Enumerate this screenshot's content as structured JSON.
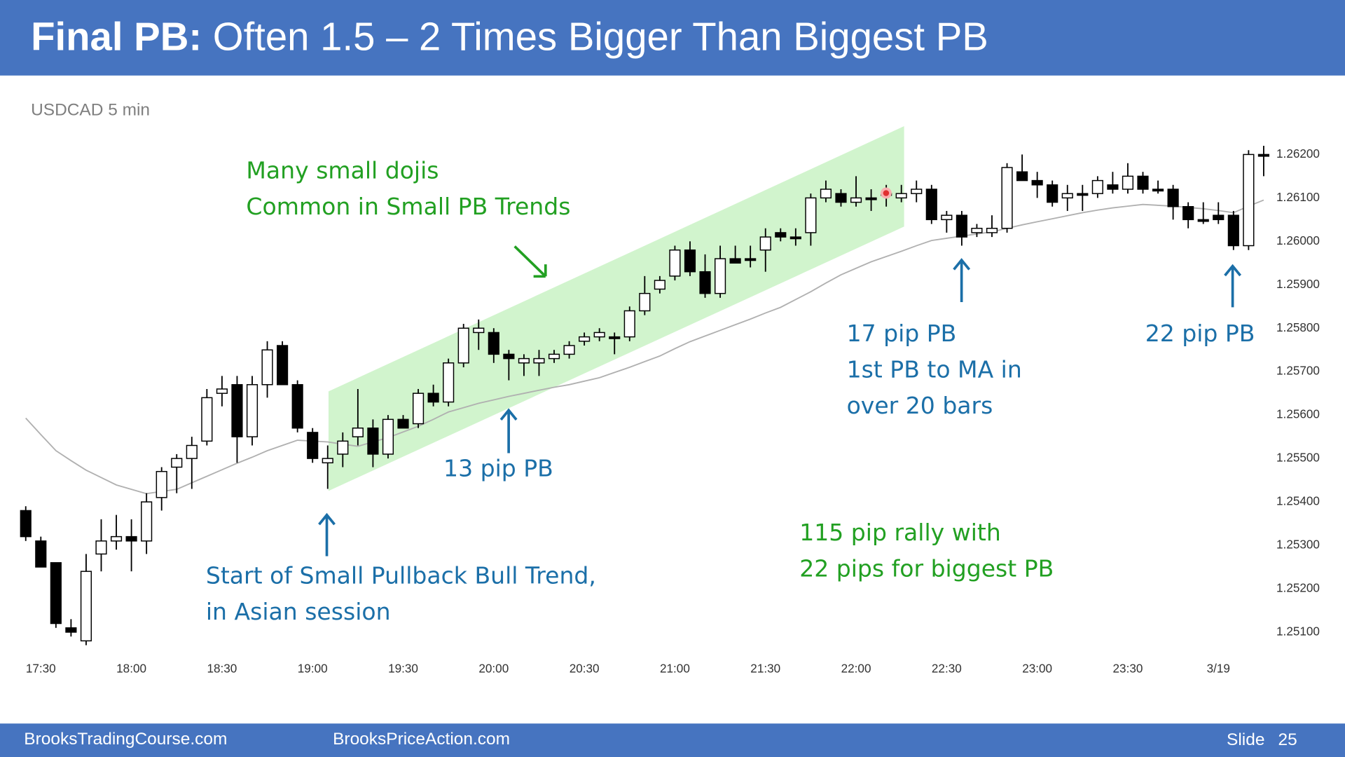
{
  "header": {
    "title_bold": "Final PB:",
    "title_rest": "Often 1.5 – 2 Times Bigger Than Biggest PB"
  },
  "chart_data": {
    "type": "candlestick",
    "title": "USDCAD 5 min",
    "open": [
      1.2538,
      1.2531,
      1.2526,
      1.2511,
      1.2508,
      1.2528,
      1.2531,
      1.2532,
      1.2531,
      1.2541,
      1.2548,
      1.255,
      1.2554,
      1.2565,
      1.2567,
      1.2555,
      1.2567,
      1.2576,
      1.2567,
      1.2556,
      1.2549,
      1.2551,
      1.2555,
      1.2557,
      1.2551,
      1.2559,
      1.2558,
      1.2565,
      1.2563,
      1.2572,
      1.2579,
      1.2579,
      1.2574,
      1.2572,
      1.2572,
      1.2573,
      1.2574,
      1.2577,
      1.2578,
      1.2578,
      1.2578,
      1.2584,
      1.2589,
      1.2592,
      1.2598,
      1.2593,
      1.2588,
      1.2596,
      1.2596,
      1.2598,
      1.2602,
      1.2601,
      1.2602,
      1.261,
      1.2611,
      1.2609,
      1.261,
      1.2611,
      1.261,
      1.2611,
      1.2612,
      1.2605,
      1.2606,
      1.2602,
      1.2602,
      1.2603,
      1.2616,
      1.2614,
      1.2613,
      1.261,
      1.2611,
      1.2611,
      1.2613,
      1.2612,
      1.2615,
      1.2612,
      1.2612,
      1.2608,
      1.2605,
      1.2606,
      1.2606,
      1.2599,
      1.262
    ],
    "high": [
      1.2539,
      1.2532,
      1.2526,
      1.2513,
      1.2528,
      1.2536,
      1.2537,
      1.2536,
      1.2542,
      1.2548,
      1.2551,
      1.2555,
      1.2566,
      1.2569,
      1.2569,
      1.2569,
      1.2577,
      1.2577,
      1.2568,
      1.2557,
      1.2553,
      1.2556,
      1.2566,
      1.2559,
      1.256,
      1.256,
      1.2566,
      1.2567,
      1.2573,
      1.2581,
      1.2582,
      1.258,
      1.2575,
      1.2574,
      1.2575,
      1.2575,
      1.2577,
      1.2579,
      1.258,
      1.2579,
      1.2585,
      1.2592,
      1.2592,
      1.2599,
      1.26,
      1.2597,
      1.2599,
      1.2599,
      1.2599,
      1.2603,
      1.2603,
      1.2603,
      1.2611,
      1.2614,
      1.2612,
      1.2615,
      1.2612,
      1.2613,
      1.2613,
      1.2614,
      1.2613,
      1.2607,
      1.2607,
      1.2604,
      1.2606,
      1.2618,
      1.262,
      1.2616,
      1.2614,
      1.2613,
      1.2613,
      1.2615,
      1.2616,
      1.2618,
      1.2616,
      1.2614,
      1.2613,
      1.2609,
      1.2609,
      1.2609,
      1.2607,
      1.2621,
      1.2622
    ],
    "low": [
      1.2531,
      1.2525,
      1.2511,
      1.2509,
      1.2507,
      1.2524,
      1.2529,
      1.2524,
      1.2528,
      1.2538,
      1.2542,
      1.2543,
      1.2553,
      1.2562,
      1.2549,
      1.2553,
      1.2564,
      1.2567,
      1.2556,
      1.2549,
      1.2543,
      1.2548,
      1.2553,
      1.2548,
      1.255,
      1.2557,
      1.2557,
      1.2562,
      1.2562,
      1.2571,
      1.2575,
      1.2572,
      1.2568,
      1.2569,
      1.2569,
      1.2572,
      1.2573,
      1.2576,
      1.2577,
      1.2574,
      1.2577,
      1.2583,
      1.2588,
      1.2591,
      1.2592,
      1.2587,
      1.2587,
      1.2595,
      1.2594,
      1.2593,
      1.26,
      1.2599,
      1.2599,
      1.2609,
      1.2608,
      1.2608,
      1.2607,
      1.2608,
      1.2609,
      1.2609,
      1.2604,
      1.2602,
      1.2599,
      1.2601,
      1.2601,
      1.2602,
      1.2614,
      1.261,
      1.2608,
      1.2607,
      1.2607,
      1.261,
      1.2611,
      1.2611,
      1.2611,
      1.2611,
      1.2605,
      1.2603,
      1.2604,
      1.2604,
      1.2598,
      1.2598,
      1.2615
    ],
    "close": [
      1.2532,
      1.2525,
      1.2512,
      1.251,
      1.2524,
      1.2531,
      1.2532,
      1.2531,
      1.254,
      1.2547,
      1.255,
      1.2553,
      1.2564,
      1.2566,
      1.2555,
      1.2567,
      1.2575,
      1.2567,
      1.2557,
      1.255,
      1.255,
      1.2554,
      1.2557,
      1.2551,
      1.2559,
      1.2557,
      1.2565,
      1.2563,
      1.2572,
      1.258,
      1.258,
      1.2574,
      1.2573,
      1.2573,
      1.2573,
      1.2574,
      1.2576,
      1.2578,
      1.2579,
      1.2578,
      1.2584,
      1.2588,
      1.2591,
      1.2598,
      1.2593,
      1.2588,
      1.2596,
      1.2595,
      1.2596,
      1.2601,
      1.2601,
      1.2601,
      1.261,
      1.2612,
      1.2609,
      1.261,
      1.261,
      1.2611,
      1.2611,
      1.2612,
      1.2605,
      1.2606,
      1.2601,
      1.2603,
      1.2603,
      1.2617,
      1.2614,
      1.2613,
      1.2609,
      1.2611,
      1.2611,
      1.2614,
      1.2612,
      1.2615,
      1.2612,
      1.2612,
      1.2608,
      1.2605,
      1.2605,
      1.2605,
      1.2599,
      1.262,
      1.262
    ],
    "ma": [
      1.25593,
      1.25555,
      1.25518,
      1.25495,
      1.25473,
      1.25456,
      1.25439,
      1.25429,
      1.25419,
      1.25424,
      1.25429,
      1.25444,
      1.25459,
      1.25474,
      1.25489,
      1.25503,
      1.25518,
      1.2553,
      1.25542,
      1.2554,
      1.25538,
      1.25533,
      1.25528,
      1.25538,
      1.25548,
      1.25561,
      1.25574,
      1.2559,
      1.25607,
      1.25617,
      1.25627,
      1.25635,
      1.25643,
      1.2565,
      1.25657,
      1.25664,
      1.2567,
      1.25678,
      1.25686,
      1.25698,
      1.2571,
      1.25723,
      1.25736,
      1.25753,
      1.25769,
      1.25782,
      1.25795,
      1.25808,
      1.25821,
      1.25835,
      1.25848,
      1.25866,
      1.25884,
      1.25904,
      1.25923,
      1.25938,
      1.25953,
      1.25965,
      1.25977,
      1.2599,
      1.26002,
      1.26007,
      1.26012,
      1.26017,
      1.26022,
      1.2603,
      1.26038,
      1.26045,
      1.26052,
      1.26059,
      1.26066,
      1.26072,
      1.26077,
      1.26081,
      1.26085,
      1.26083,
      1.26081,
      1.26078,
      1.26075,
      1.26071,
      1.26066,
      1.26081,
      1.26095
    ],
    "up_color": "#ffffff",
    "down_color": "#000000",
    "ma_color": "#b0b0b0",
    "xlim": [
      -1.5,
      82.5
    ],
    "xticks": [
      {
        "value": 1,
        "label": "17:30"
      },
      {
        "value": 7,
        "label": "18:00"
      },
      {
        "value": 13,
        "label": "18:30"
      },
      {
        "value": 19,
        "label": "19:00"
      },
      {
        "value": 25,
        "label": "19:30"
      },
      {
        "value": 31,
        "label": "20:00"
      },
      {
        "value": 37,
        "label": "20:30"
      },
      {
        "value": 43,
        "label": "21:00"
      },
      {
        "value": 49,
        "label": "21:30"
      },
      {
        "value": 55,
        "label": "22:00"
      },
      {
        "value": 61,
        "label": "22:30"
      },
      {
        "value": 67,
        "label": "23:00"
      },
      {
        "value": 73,
        "label": "23:30"
      },
      {
        "value": 79,
        "label": "3/19"
      }
    ],
    "ylim": [
      1.2506,
      1.2625
    ],
    "yticks": [
      {
        "value": 1.262,
        "label": "1.26200"
      },
      {
        "value": 1.261,
        "label": "1.26100"
      },
      {
        "value": 1.26,
        "label": "1.26000"
      },
      {
        "value": 1.259,
        "label": "1.25900"
      },
      {
        "value": 1.258,
        "label": "1.25800"
      },
      {
        "value": 1.257,
        "label": "1.25700"
      },
      {
        "value": 1.256,
        "label": "1.25600"
      },
      {
        "value": 1.255,
        "label": "1.25500"
      },
      {
        "value": 1.254,
        "label": "1.25400"
      },
      {
        "value": 1.253,
        "label": "1.25300"
      },
      {
        "value": 1.252,
        "label": "1.25200"
      },
      {
        "value": 1.251,
        "label": "1.25100"
      }
    ],
    "annotations": [
      {
        "lines": [
          "Many small dojis",
          "Common in Small PB Trends"
        ],
        "color": "#22a022"
      },
      {
        "lines": [
          "13 pip PB"
        ],
        "color": "#1b6fa8"
      },
      {
        "lines": [
          "Start of Small Pullback Bull Trend,",
          "in Asian session"
        ],
        "color": "#1b6fa8"
      },
      {
        "lines": [
          "17 pip PB",
          "1st PB to MA in",
          "over 20 bars"
        ],
        "color": "#1b6fa8"
      },
      {
        "lines": [
          "22 pip PB"
        ],
        "color": "#1b6fa8"
      },
      {
        "lines": [
          "115 pip rally with",
          "22 pips for biggest PB"
        ],
        "color": "#22a022"
      }
    ]
  },
  "footer": {
    "left": "BrooksTradingCourse.com",
    "center": "BrooksPriceAction.com",
    "slide": "Slide",
    "number": "25"
  }
}
